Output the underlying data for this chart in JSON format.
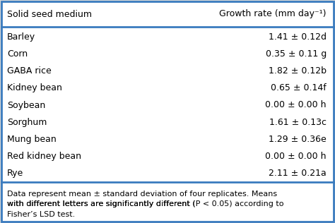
{
  "header_col1": "Solid seed medium",
  "header_col2": "Growth rate (mm day⁻¹)",
  "rows": [
    [
      "Barley",
      "1.41 ± 0.12d"
    ],
    [
      "Corn",
      "0.35 ± 0.11 g"
    ],
    [
      "GABA rice",
      "1.82 ± 0.12b"
    ],
    [
      "Kidney bean",
      "0.65 ± 0.14f"
    ],
    [
      "Soybean",
      "0.00 ± 0.00 h"
    ],
    [
      "Sorghum",
      "1.61 ± 0.13c"
    ],
    [
      "Mung bean",
      "1.29 ± 0.36e"
    ],
    [
      "Red kidney bean",
      "0.00 ± 0.00 h"
    ],
    [
      "Rye",
      "2.11 ± 0.21a"
    ]
  ],
  "footnote_lines": [
    "Data represent mean ± standard deviation of four replicates. Means",
    "with different letters are significantly different (P < 0.05) according to",
    "Fisher’s LSD test."
  ],
  "bg_color": "#d8d8d8",
  "table_bg": "#ffffff",
  "border_color": "#3a7bbf",
  "header_fontsize": 9.0,
  "row_fontsize": 9.0,
  "footnote_fontsize": 8.0
}
